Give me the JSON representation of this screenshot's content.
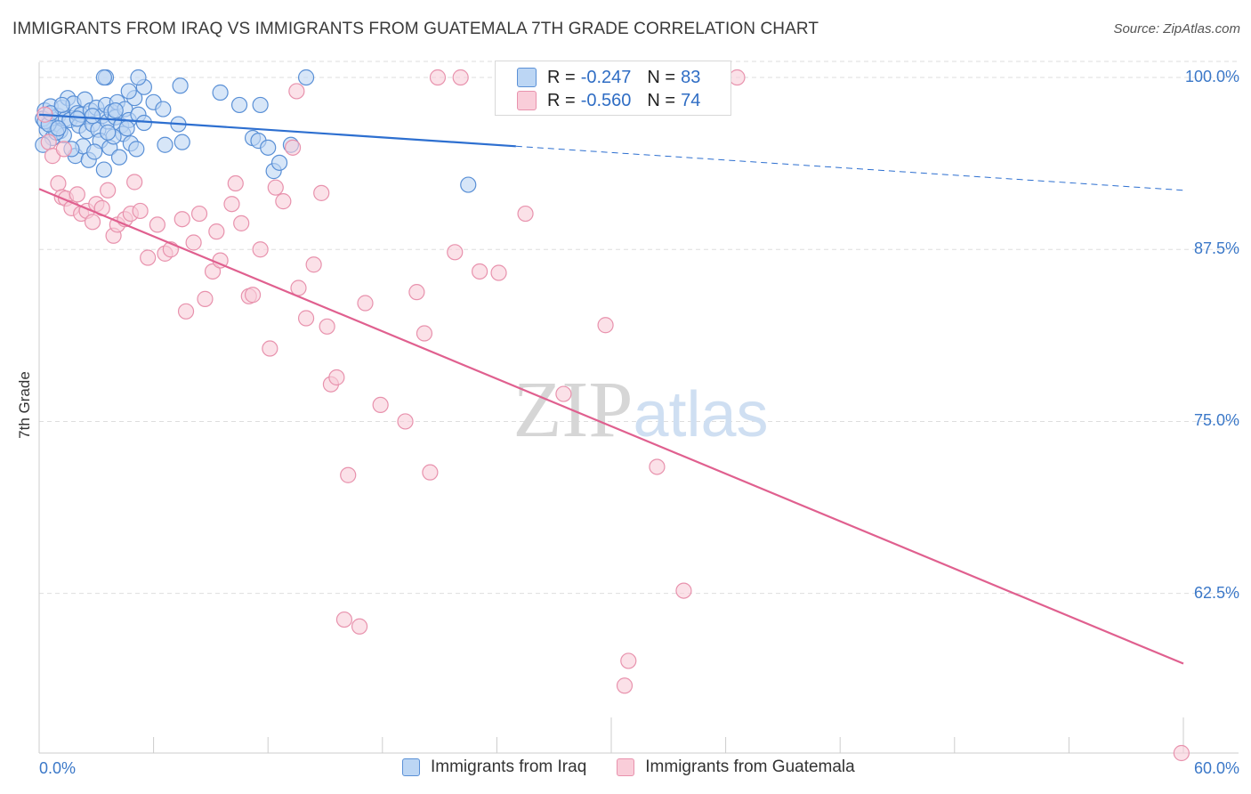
{
  "title": "IMMIGRANTS FROM IRAQ VS IMMIGRANTS FROM GUATEMALA 7TH GRADE CORRELATION CHART",
  "source": "Source: ZipAtlas.com",
  "watermark": "ZIPatlas",
  "legend_top": {
    "iraq": {
      "r_label": "R =",
      "r_value": "-0.247",
      "n_label": "N =",
      "n_value": "83"
    },
    "guatemala": {
      "r_label": "R =",
      "r_value": "-0.560",
      "n_label": "N =",
      "n_value": "74"
    }
  },
  "colors": {
    "iraq_fill": "#bcd6f4",
    "iraq_stroke": "#5a90d6",
    "iraq_line": "#2d6fd0",
    "guatemala_fill": "#f9cdd9",
    "guatemala_stroke": "#e892ad",
    "guatemala_line": "#e0608f",
    "tick_text": "#3b78c8",
    "grid": "#dedede"
  },
  "chart_data": {
    "type": "scatter",
    "title": "IMMIGRANTS FROM IRAQ VS IMMIGRANTS FROM GUATEMALA 7TH GRADE CORRELATION CHART",
    "xlabel": "",
    "ylabel": "7th Grade",
    "xlim": [
      0,
      60
    ],
    "ylim": [
      50.9,
      101.1
    ],
    "x_tick_labels": [
      "0.0%",
      "60.0%"
    ],
    "y_ticks": [
      62.5,
      75.0,
      87.5,
      100.0
    ],
    "y_tick_labels": [
      "62.5%",
      "75.0%",
      "87.5%",
      "100.0%"
    ],
    "grid": true,
    "legend_position": "bottom",
    "series": [
      {
        "name": "Immigrants from Iraq",
        "r": -0.247,
        "n": 83,
        "trend": {
          "x0": 0.0,
          "y0": 97.3,
          "x1": 25.0,
          "y1": 95.0,
          "x_dash_end": 60.0,
          "y_dash_end": 91.8
        },
        "points": [
          [
            0.3,
            97.6
          ],
          [
            0.5,
            96.8
          ],
          [
            0.6,
            97.9
          ],
          [
            0.8,
            96.4
          ],
          [
            1.0,
            97.2
          ],
          [
            1.1,
            96.1
          ],
          [
            1.2,
            97.8
          ],
          [
            1.4,
            97.0
          ],
          [
            1.5,
            98.5
          ],
          [
            1.6,
            96.9
          ],
          [
            1.8,
            98.1
          ],
          [
            2.0,
            97.4
          ],
          [
            2.1,
            96.5
          ],
          [
            2.2,
            97.3
          ],
          [
            2.4,
            98.4
          ],
          [
            2.5,
            96.1
          ],
          [
            2.7,
            97.6
          ],
          [
            2.8,
            96.6
          ],
          [
            3.0,
            97.8
          ],
          [
            3.1,
            96.2
          ],
          [
            3.3,
            97.2
          ],
          [
            3.5,
            98.0
          ],
          [
            3.6,
            96.8
          ],
          [
            3.8,
            97.5
          ],
          [
            4.0,
            97.1
          ],
          [
            4.1,
            98.2
          ],
          [
            4.3,
            96.5
          ],
          [
            4.5,
            97.7
          ],
          [
            4.7,
            96.9
          ],
          [
            5.0,
            98.5
          ],
          [
            5.2,
            97.3
          ],
          [
            5.5,
            96.7
          ],
          [
            0.4,
            96.2
          ],
          [
            0.7,
            95.6
          ],
          [
            1.3,
            95.8
          ],
          [
            1.9,
            94.3
          ],
          [
            2.3,
            95.0
          ],
          [
            2.6,
            94.0
          ],
          [
            3.2,
            95.4
          ],
          [
            3.4,
            93.3
          ],
          [
            3.7,
            94.9
          ],
          [
            4.2,
            94.2
          ],
          [
            4.4,
            95.9
          ],
          [
            4.8,
            95.2
          ],
          [
            5.1,
            94.8
          ],
          [
            0.2,
            95.1
          ],
          [
            0.9,
            96.0
          ],
          [
            1.7,
            94.8
          ],
          [
            2.9,
            94.6
          ],
          [
            3.9,
            95.7
          ],
          [
            3.5,
            100.0
          ],
          [
            3.4,
            100.0
          ],
          [
            4.7,
            99.0
          ],
          [
            5.5,
            99.3
          ],
          [
            6.0,
            98.2
          ],
          [
            5.2,
            100.0
          ],
          [
            6.5,
            97.7
          ],
          [
            7.3,
            96.6
          ],
          [
            7.4,
            99.4
          ],
          [
            7.5,
            95.3
          ],
          [
            6.6,
            95.1
          ],
          [
            9.5,
            98.9
          ],
          [
            10.5,
            98.0
          ],
          [
            11.2,
            95.6
          ],
          [
            11.5,
            95.4
          ],
          [
            11.6,
            98.0
          ],
          [
            12.0,
            94.9
          ],
          [
            12.3,
            93.2
          ],
          [
            12.6,
            93.8
          ],
          [
            13.2,
            95.1
          ],
          [
            14.0,
            100.0
          ],
          [
            22.5,
            92.2
          ],
          [
            0.2,
            97.0
          ],
          [
            0.3,
            96.8
          ],
          [
            0.5,
            96.6
          ],
          [
            0.6,
            97.4
          ],
          [
            1.0,
            96.3
          ],
          [
            1.2,
            98.0
          ],
          [
            2.0,
            97.0
          ],
          [
            2.8,
            97.2
          ],
          [
            3.6,
            96.0
          ],
          [
            4.0,
            97.6
          ],
          [
            4.6,
            96.3
          ]
        ]
      },
      {
        "name": "Immigrants from Guatemala",
        "r": -0.56,
        "n": 74,
        "trend": {
          "x0": 0.0,
          "y0": 91.9,
          "x1": 60.0,
          "y1": 57.4
        },
        "points": [
          [
            0.3,
            97.3
          ],
          [
            0.5,
            95.3
          ],
          [
            0.7,
            94.3
          ],
          [
            1.0,
            92.3
          ],
          [
            1.2,
            91.3
          ],
          [
            1.4,
            91.2
          ],
          [
            1.7,
            90.5
          ],
          [
            2.0,
            91.5
          ],
          [
            2.2,
            90.1
          ],
          [
            2.5,
            90.3
          ],
          [
            2.8,
            89.5
          ],
          [
            3.0,
            90.8
          ],
          [
            3.3,
            90.5
          ],
          [
            3.6,
            91.8
          ],
          [
            3.9,
            88.5
          ],
          [
            4.1,
            89.3
          ],
          [
            4.5,
            89.7
          ],
          [
            4.8,
            90.1
          ],
          [
            5.0,
            92.4
          ],
          [
            5.3,
            90.3
          ],
          [
            5.7,
            86.9
          ],
          [
            6.2,
            89.3
          ],
          [
            6.6,
            87.2
          ],
          [
            6.9,
            87.5
          ],
          [
            7.5,
            89.7
          ],
          [
            7.7,
            83.0
          ],
          [
            8.1,
            88.0
          ],
          [
            8.4,
            90.1
          ],
          [
            8.7,
            83.9
          ],
          [
            9.1,
            85.9
          ],
          [
            9.3,
            88.8
          ],
          [
            9.5,
            86.7
          ],
          [
            10.1,
            90.8
          ],
          [
            10.3,
            92.3
          ],
          [
            10.6,
            89.4
          ],
          [
            11.0,
            84.1
          ],
          [
            11.2,
            84.2
          ],
          [
            11.6,
            87.5
          ],
          [
            12.1,
            80.3
          ],
          [
            12.4,
            92.0
          ],
          [
            12.8,
            91.0
          ],
          [
            13.3,
            94.9
          ],
          [
            13.6,
            84.7
          ],
          [
            14.0,
            82.5
          ],
          [
            14.4,
            86.4
          ],
          [
            14.8,
            91.6
          ],
          [
            15.1,
            81.9
          ],
          [
            15.3,
            77.7
          ],
          [
            15.6,
            78.2
          ],
          [
            16.2,
            71.1
          ],
          [
            16.8,
            60.1
          ],
          [
            17.1,
            83.6
          ],
          [
            17.9,
            76.2
          ],
          [
            19.2,
            75.0
          ],
          [
            19.8,
            84.4
          ],
          [
            20.2,
            81.4
          ],
          [
            20.5,
            71.3
          ],
          [
            20.9,
            100.0
          ],
          [
            21.8,
            87.3
          ],
          [
            22.1,
            100.0
          ],
          [
            23.1,
            85.9
          ],
          [
            24.1,
            85.8
          ],
          [
            25.5,
            90.1
          ],
          [
            27.5,
            77.0
          ],
          [
            29.7,
            82.0
          ],
          [
            30.9,
            57.6
          ],
          [
            30.7,
            55.8
          ],
          [
            32.4,
            71.7
          ],
          [
            33.8,
            62.7
          ],
          [
            36.6,
            100.0
          ],
          [
            13.5,
            99.0
          ],
          [
            16.0,
            60.6
          ],
          [
            59.9,
            50.9
          ],
          [
            1.3,
            94.8
          ]
        ]
      }
    ]
  }
}
